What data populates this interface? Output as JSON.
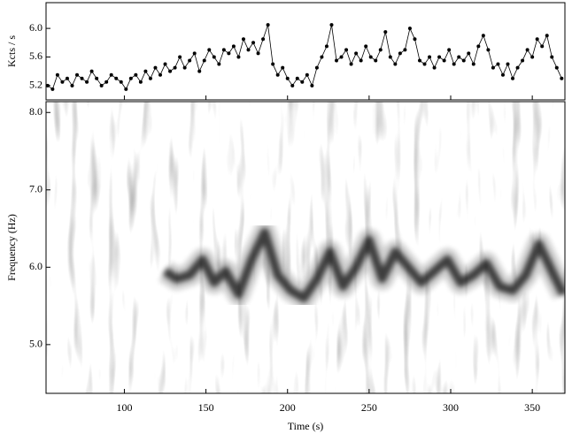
{
  "chart_data": [
    {
      "type": "line",
      "ylabel": "Kcts / s",
      "color": "#000000",
      "marker": true,
      "xlim": [
        52,
        370
      ],
      "xticks": [
        100,
        150,
        200,
        250,
        300,
        350
      ],
      "ylim": [
        5.0,
        6.36
      ],
      "yticks": [
        5.2,
        5.6,
        {
          "value": 6,
          "label": "6.0"
        }
      ],
      "x": [
        53,
        56,
        59,
        62,
        65,
        68,
        71,
        74,
        77,
        80,
        83,
        86,
        89,
        92,
        95,
        98,
        101,
        104,
        107,
        110,
        113,
        116,
        119,
        122,
        125,
        128,
        131,
        134,
        137,
        140,
        143,
        146,
        149,
        152,
        155,
        158,
        161,
        164,
        167,
        170,
        173,
        176,
        179,
        182,
        185,
        188,
        191,
        194,
        197,
        200,
        203,
        206,
        209,
        212,
        215,
        218,
        221,
        224,
        227,
        230,
        233,
        236,
        239,
        242,
        245,
        248,
        251,
        254,
        257,
        260,
        263,
        266,
        269,
        272,
        275,
        278,
        281,
        284,
        287,
        290,
        293,
        296,
        299,
        302,
        305,
        308,
        311,
        314,
        317,
        320,
        323,
        326,
        329,
        332,
        335,
        338,
        341,
        344,
        347,
        350,
        353,
        356,
        359,
        362,
        365,
        368
      ],
      "values": [
        5.2,
        5.15,
        5.35,
        5.25,
        5.3,
        5.2,
        5.35,
        5.3,
        5.25,
        5.4,
        5.3,
        5.2,
        5.25,
        5.35,
        5.3,
        5.25,
        5.15,
        5.3,
        5.35,
        5.25,
        5.4,
        5.3,
        5.45,
        5.35,
        5.5,
        5.4,
        5.45,
        5.6,
        5.45,
        5.55,
        5.65,
        5.4,
        5.55,
        5.7,
        5.6,
        5.5,
        5.7,
        5.65,
        5.75,
        5.6,
        5.85,
        5.7,
        5.8,
        5.65,
        5.85,
        6.05,
        5.5,
        5.35,
        5.45,
        5.3,
        5.2,
        5.3,
        5.25,
        5.35,
        5.2,
        5.45,
        5.6,
        5.75,
        6.05,
        5.55,
        5.6,
        5.7,
        5.5,
        5.65,
        5.55,
        5.75,
        5.6,
        5.55,
        5.7,
        5.95,
        5.6,
        5.5,
        5.65,
        5.7,
        6.0,
        5.85,
        5.55,
        5.5,
        5.6,
        5.45,
        5.6,
        5.55,
        5.7,
        5.5,
        5.6,
        5.55,
        5.65,
        5.5,
        5.75,
        5.9,
        5.7,
        5.45,
        5.5,
        5.35,
        5.5,
        5.3,
        5.45,
        5.55,
        5.7,
        5.6,
        5.85,
        5.75,
        5.9,
        5.6,
        5.45,
        5.3
      ]
    },
    {
      "type": "spectrogram",
      "xlabel": "Time (s)",
      "ylabel": "Frequency (Hz)",
      "color": "#000000",
      "xlim": [
        52,
        370
      ],
      "xticks": [
        100,
        150,
        200,
        250,
        300,
        350
      ],
      "ylim": [
        4.37,
        8.14
      ],
      "yticks": [
        {
          "value": 5,
          "label": "5.0"
        },
        {
          "value": 6,
          "label": "6.0"
        },
        {
          "value": 7,
          "label": "7.0"
        },
        {
          "value": 8,
          "label": "8.0"
        }
      ],
      "x": [
        125,
        132,
        140,
        148,
        155,
        162,
        170,
        178,
        186,
        194,
        202,
        210,
        218,
        226,
        234,
        242,
        250,
        258,
        266,
        274,
        282,
        290,
        298,
        306,
        314,
        322,
        330,
        338,
        346,
        354,
        362,
        369
      ],
      "values": [
        5.95,
        5.85,
        5.9,
        6.1,
        5.8,
        5.95,
        5.65,
        6.1,
        6.45,
        5.9,
        5.7,
        5.6,
        5.85,
        6.2,
        5.75,
        6.0,
        6.35,
        5.85,
        6.2,
        6.0,
        5.8,
        5.95,
        6.1,
        5.8,
        5.9,
        6.05,
        5.75,
        5.7,
        5.9,
        6.3,
        5.95,
        5.65
      ]
    }
  ]
}
